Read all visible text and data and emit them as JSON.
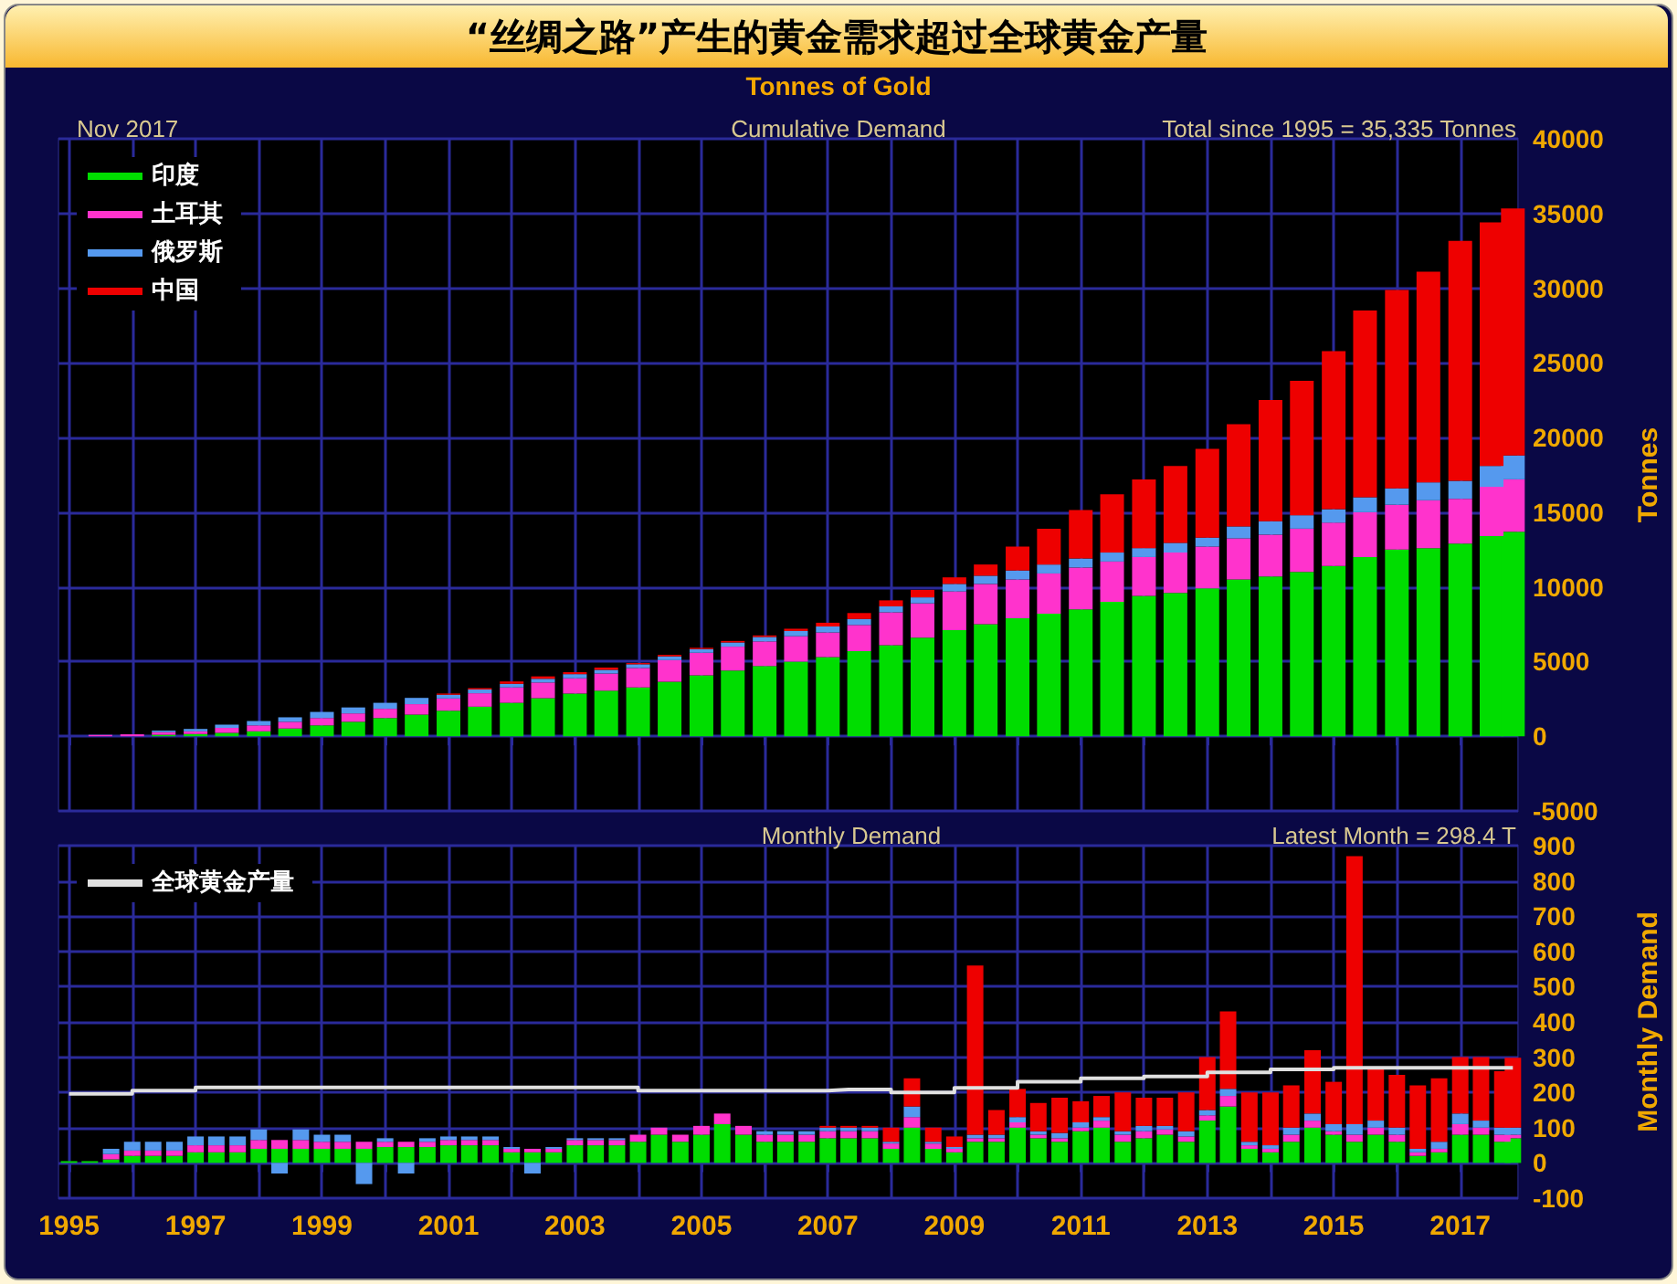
{
  "chart_data": [
    {
      "type": "bar",
      "title": "“丝绸之路”产生的黄金需求超过全球黄金产量",
      "subtitle": "Tonnes of Gold",
      "ylabel": "Tonnes",
      "annotations": [
        "Nov 2017",
        "Cumulative Demand",
        "Total since 1995 = 35,335 Tonnes"
      ],
      "stacked": true,
      "grid": true,
      "legend": "top left",
      "tick_labels": "y",
      "x": [
        "1995-01",
        "1995-07",
        "1996-01",
        "1996-07",
        "1997-01",
        "1997-07",
        "1998-01",
        "1998-07",
        "1999-01",
        "1999-07",
        "2000-01",
        "2000-07",
        "2001-01",
        "2001-07",
        "2002-01",
        "2002-07",
        "2003-01",
        "2003-07",
        "2004-01",
        "2004-07",
        "2005-01",
        "2005-07",
        "2006-01",
        "2006-07",
        "2007-01",
        "2007-07",
        "2008-01",
        "2008-07",
        "2009-01",
        "2009-07",
        "2010-01",
        "2010-07",
        "2011-01",
        "2011-07",
        "2012-01",
        "2012-07",
        "2013-01",
        "2013-07",
        "2014-01",
        "2014-07",
        "2015-01",
        "2015-07",
        "2016-01",
        "2016-07",
        "2017-01",
        "2017-07",
        "2017-11"
      ],
      "xlim": [
        "1994-11",
        "2017-12"
      ],
      "xticks": [
        {
          "value": "1995",
          "label": null
        },
        {
          "value": "1996",
          "label": null
        },
        {
          "value": "1997",
          "label": null
        },
        {
          "value": "1998",
          "label": null
        },
        {
          "value": "1999",
          "label": null
        },
        {
          "value": "2000",
          "label": null
        },
        {
          "value": "2001",
          "label": null
        },
        {
          "value": "2002",
          "label": null
        },
        {
          "value": "2003",
          "label": null
        },
        {
          "value": "2004",
          "label": null
        },
        {
          "value": "2005",
          "label": null
        },
        {
          "value": "2006",
          "label": null
        },
        {
          "value": "2007",
          "label": null
        },
        {
          "value": "2008",
          "label": null
        },
        {
          "value": "2009",
          "label": null
        },
        {
          "value": "2010",
          "label": null
        },
        {
          "value": "2011",
          "label": null
        },
        {
          "value": "2012",
          "label": null
        },
        {
          "value": "2013",
          "label": null
        },
        {
          "value": "2014",
          "label": null
        },
        {
          "value": "2015",
          "label": null
        },
        {
          "value": "2016",
          "label": null
        },
        {
          "value": "2017",
          "label": null
        }
      ],
      "ylim": [
        -5000,
        40000
      ],
      "yticks": [
        -5000,
        0,
        5000,
        10000,
        15000,
        20000,
        25000,
        30000,
        35000,
        40000
      ],
      "series": [
        {
          "name": "印度",
          "color": "#00dd00",
          "values": [
            0,
            null,
            null,
            100,
            150,
            220,
            330,
            520,
            730,
            970,
            1220,
            1450,
            1710,
            1980,
            2240,
            2550,
            2860,
            3050,
            3270,
            3650,
            4080,
            4400,
            4700,
            5000,
            5300,
            5700,
            6100,
            6600,
            7100,
            7500,
            7900,
            8200,
            8500,
            9000,
            9400,
            9600,
            9900,
            10500,
            10700,
            11000,
            11400,
            12000,
            12500,
            12600,
            12900,
            13400,
            13700
          ]
        },
        {
          "name": "土耳其",
          "color": "#ff33cc",
          "values": [
            0,
            90,
            130,
            180,
            180,
            340,
            400,
            450,
            490,
            560,
            620,
            700,
            820,
            900,
            1030,
            1050,
            1020,
            1150,
            1300,
            1450,
            1510,
            1600,
            1650,
            1700,
            1650,
            1750,
            2200,
            2300,
            2600,
            2700,
            2600,
            2700,
            2800,
            2700,
            2600,
            2700,
            2800,
            2750,
            2800,
            2900,
            2900,
            3000,
            3000,
            3200,
            3000,
            3300,
            3500
          ]
        },
        {
          "name": "俄罗斯",
          "color": "#5599ee",
          "values": [
            0,
            10,
            null,
            100,
            160,
            220,
            290,
            300,
            410,
            400,
            400,
            420,
            250,
            250,
            240,
            250,
            280,
            250,
            250,
            250,
            250,
            280,
            300,
            350,
            400,
            400,
            400,
            400,
            500,
            550,
            600,
            600,
            600,
            600,
            600,
            650,
            600,
            800,
            900,
            900,
            900,
            1000,
            1100,
            1200,
            1200,
            1400,
            1600
          ]
        },
        {
          "name": "中国",
          "color": "#ee0000",
          "values": [
            0,
            0,
            0,
            0,
            0,
            0,
            0,
            0,
            0,
            0,
            0,
            0,
            80,
            90,
            160,
            160,
            130,
            150,
            80,
            100,
            80,
            100,
            100,
            150,
            250,
            400,
            400,
            500,
            440,
            750,
            1600,
            2400,
            3250,
            3900,
            4590,
            5150,
            5940,
            6850,
            8110,
            9000,
            10590,
            12500,
            13280,
            14100,
            16060,
            16300,
            16535
          ]
        }
      ]
    },
    {
      "type": "bar",
      "title": "Monthly Demand",
      "ylabel": "Monthly Demand",
      "annotations": [
        "Latest Month = 298.4 T"
      ],
      "stacked": true,
      "grid": true,
      "legend": "top left",
      "x": [
        "1995-01",
        "1995-05",
        "1995-09",
        "1996-01",
        "1996-05",
        "1996-09",
        "1997-01",
        "1997-05",
        "1997-09",
        "1998-01",
        "1998-05",
        "1998-09",
        "1999-01",
        "1999-05",
        "1999-09",
        "2000-01",
        "2000-05",
        "2000-09",
        "2001-01",
        "2001-05",
        "2001-09",
        "2002-01",
        "2002-05",
        "2002-09",
        "2003-01",
        "2003-05",
        "2003-09",
        "2004-01",
        "2004-05",
        "2004-09",
        "2005-01",
        "2005-05",
        "2005-09",
        "2006-01",
        "2006-05",
        "2006-09",
        "2007-01",
        "2007-05",
        "2007-09",
        "2008-01",
        "2008-05",
        "2008-09",
        "2009-01",
        "2009-05",
        "2009-09",
        "2010-01",
        "2010-05",
        "2010-09",
        "2011-01",
        "2011-05",
        "2011-09",
        "2012-01",
        "2012-05",
        "2012-09",
        "2013-01",
        "2013-05",
        "2013-09",
        "2014-01",
        "2014-05",
        "2014-09",
        "2015-01",
        "2015-05",
        "2015-09",
        "2016-01",
        "2016-05",
        "2016-09",
        "2017-01",
        "2017-05",
        "2017-09",
        "2017-11"
      ],
      "xlim": [
        "1994-11",
        "2017-12"
      ],
      "xticks": [
        {
          "value": "1995",
          "label": "1995"
        },
        {
          "value": "1996",
          "label": null
        },
        {
          "value": "1997",
          "label": "1997"
        },
        {
          "value": "1998",
          "label": null
        },
        {
          "value": "1999",
          "label": "1999"
        },
        {
          "value": "2000",
          "label": null
        },
        {
          "value": "2001",
          "label": "2001"
        },
        {
          "value": "2002",
          "label": null
        },
        {
          "value": "2003",
          "label": "2003"
        },
        {
          "value": "2004",
          "label": null
        },
        {
          "value": "2005",
          "label": "2005"
        },
        {
          "value": "2006",
          "label": null
        },
        {
          "value": "2007",
          "label": "2007"
        },
        {
          "value": "2008",
          "label": null
        },
        {
          "value": "2009",
          "label": "2009"
        },
        {
          "value": "2010",
          "label": null
        },
        {
          "value": "2011",
          "label": "2011"
        },
        {
          "value": "2012",
          "label": null
        },
        {
          "value": "2013",
          "label": "2013"
        },
        {
          "value": "2014",
          "label": null
        },
        {
          "value": "2015",
          "label": "2015"
        },
        {
          "value": "2016",
          "label": null
        },
        {
          "value": "2017",
          "label": "2017"
        }
      ],
      "ylim": [
        -100,
        900
      ],
      "yticks": [
        -100,
        0,
        100,
        200,
        300,
        400,
        500,
        600,
        700,
        800,
        900
      ],
      "series": [
        {
          "color": "#00dd00",
          "values": [
            5,
            5,
            10,
            20,
            20,
            20,
            30,
            30,
            30,
            40,
            40,
            40,
            40,
            40,
            40,
            45,
            45,
            45,
            50,
            50,
            50,
            30,
            30,
            30,
            50,
            50,
            50,
            60,
            80,
            60,
            80,
            110,
            80,
            60,
            60,
            60,
            70,
            70,
            70,
            40,
            100,
            40,
            30,
            60,
            60,
            100,
            70,
            60,
            90,
            100,
            60,
            70,
            80,
            60,
            120,
            160,
            40,
            30,
            60,
            100,
            80,
            60,
            80,
            60,
            20,
            30,
            80,
            80,
            60,
            70
          ]
        },
        {
          "color": "#ff33cc",
          "values": [
            0,
            0,
            15,
            15,
            15,
            15,
            20,
            20,
            20,
            25,
            25,
            25,
            20,
            20,
            20,
            15,
            15,
            15,
            15,
            15,
            15,
            10,
            10,
            10,
            15,
            15,
            15,
            20,
            20,
            20,
            25,
            30,
            25,
            20,
            20,
            20,
            20,
            20,
            20,
            15,
            30,
            15,
            10,
            10,
            10,
            15,
            10,
            10,
            10,
            20,
            20,
            20,
            15,
            15,
            15,
            30,
            10,
            10,
            20,
            20,
            10,
            20,
            20,
            20,
            10,
            10,
            30,
            20,
            20,
            10
          ]
        },
        {
          "color": "#5599ee",
          "values": [
            0,
            0,
            15,
            25,
            25,
            25,
            25,
            25,
            25,
            30,
            -30,
            30,
            20,
            20,
            -60,
            10,
            -30,
            10,
            10,
            10,
            10,
            5,
            -30,
            5,
            5,
            5,
            5,
            0,
            0,
            0,
            0,
            0,
            0,
            10,
            10,
            10,
            10,
            10,
            10,
            5,
            30,
            5,
            5,
            10,
            10,
            15,
            10,
            15,
            15,
            10,
            10,
            15,
            10,
            15,
            15,
            20,
            10,
            10,
            20,
            20,
            20,
            30,
            20,
            20,
            10,
            20,
            30,
            20,
            20,
            20
          ]
        },
        {
          "color": "#ee0000",
          "values": [
            0,
            0,
            0,
            0,
            0,
            0,
            0,
            0,
            0,
            0,
            0,
            0,
            0,
            0,
            0,
            0,
            0,
            0,
            0,
            0,
            0,
            0,
            0,
            0,
            0,
            0,
            0,
            0,
            0,
            0,
            0,
            0,
            0,
            0,
            0,
            0,
            5,
            5,
            5,
            40,
            80,
            40,
            30,
            480,
            70,
            80,
            80,
            100,
            60,
            60,
            110,
            80,
            80,
            110,
            150,
            220,
            140,
            150,
            120,
            180,
            120,
            760,
            150,
            150,
            180,
            180,
            160,
            180,
            160,
            198
          ]
        },
        {
          "type": "step",
          "name": "全球黄金产量",
          "color": "#e0e0e0",
          "values": [
            196,
            196,
            196,
            205,
            205,
            205,
            214,
            214,
            214,
            214,
            214,
            214,
            214,
            214,
            214,
            214,
            214,
            214,
            214,
            214,
            214,
            214,
            214,
            214,
            214,
            214,
            214,
            205,
            205,
            205,
            205,
            205,
            205,
            205,
            205,
            205,
            208,
            208,
            208,
            200,
            200,
            200,
            213,
            213,
            213,
            230,
            230,
            230,
            240,
            240,
            240,
            245,
            245,
            245,
            257,
            257,
            257,
            265,
            265,
            265,
            270,
            270,
            270,
            270,
            270,
            270,
            270,
            270,
            270,
            270
          ]
        }
      ]
    }
  ]
}
